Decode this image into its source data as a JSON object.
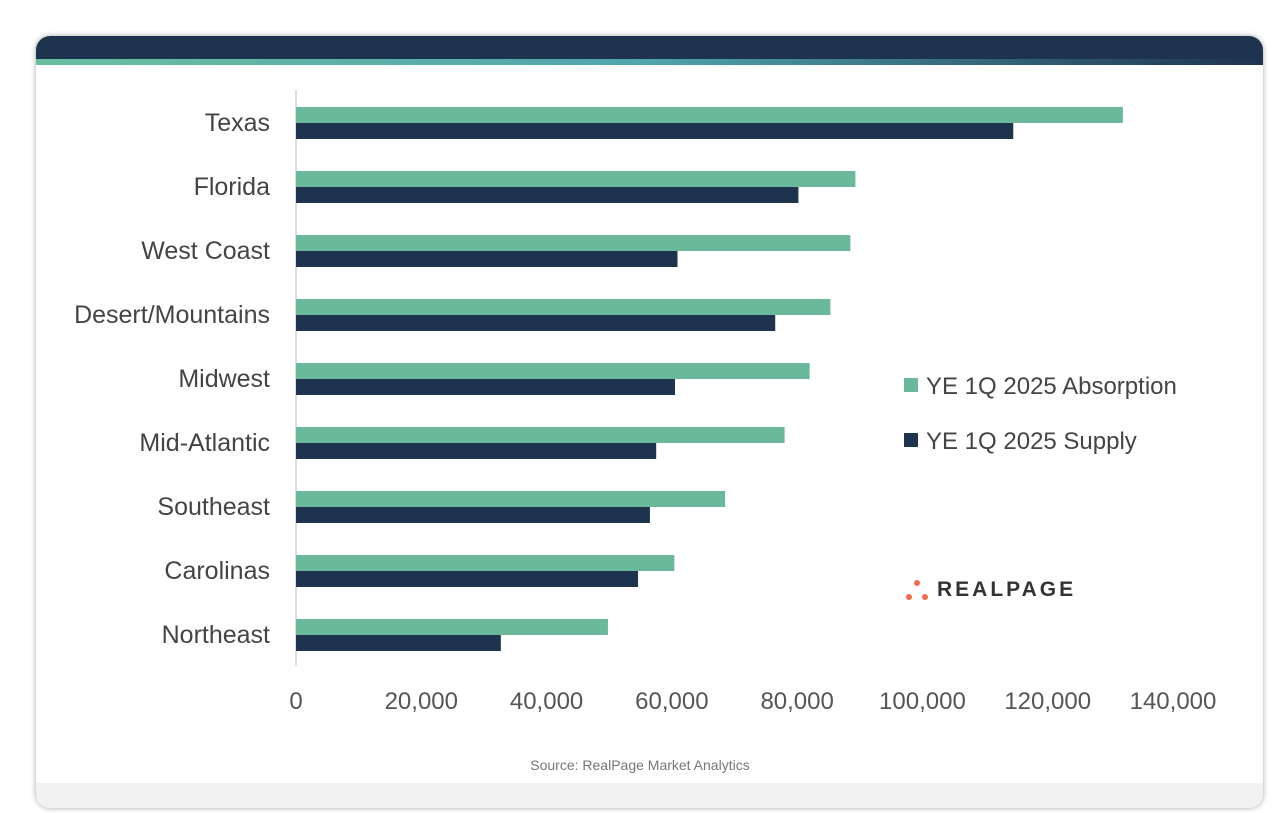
{
  "chart_data": {
    "type": "bar",
    "orientation": "horizontal",
    "categories": [
      "Texas",
      "Florida",
      "West Coast",
      "Desert/Mountains",
      "Midwest",
      "Mid-Atlantic",
      "Southeast",
      "Carolinas",
      "Northeast"
    ],
    "series": [
      {
        "name": "YE 1Q 2025 Absorption",
        "color": "#6bb99b",
        "values": [
          132000,
          89300,
          88500,
          85300,
          82000,
          78000,
          68500,
          60400,
          49800
        ]
      },
      {
        "name": "YE 1Q 2025 Supply",
        "color": "#1e344e",
        "values": [
          114500,
          80200,
          60900,
          76500,
          60500,
          57500,
          56500,
          54600,
          32700
        ]
      }
    ],
    "xlim": [
      0,
      140000
    ],
    "xticks": [
      0,
      20000,
      40000,
      60000,
      80000,
      100000,
      120000,
      140000
    ],
    "xtick_labels": [
      "0",
      "20,000",
      "40,000",
      "60,000",
      "80,000",
      "100,000",
      "120,000",
      "140,000"
    ],
    "grid": false,
    "legend_placement": "right"
  },
  "source": "Source: RealPage Market Analytics",
  "logo": "REALPAGE"
}
